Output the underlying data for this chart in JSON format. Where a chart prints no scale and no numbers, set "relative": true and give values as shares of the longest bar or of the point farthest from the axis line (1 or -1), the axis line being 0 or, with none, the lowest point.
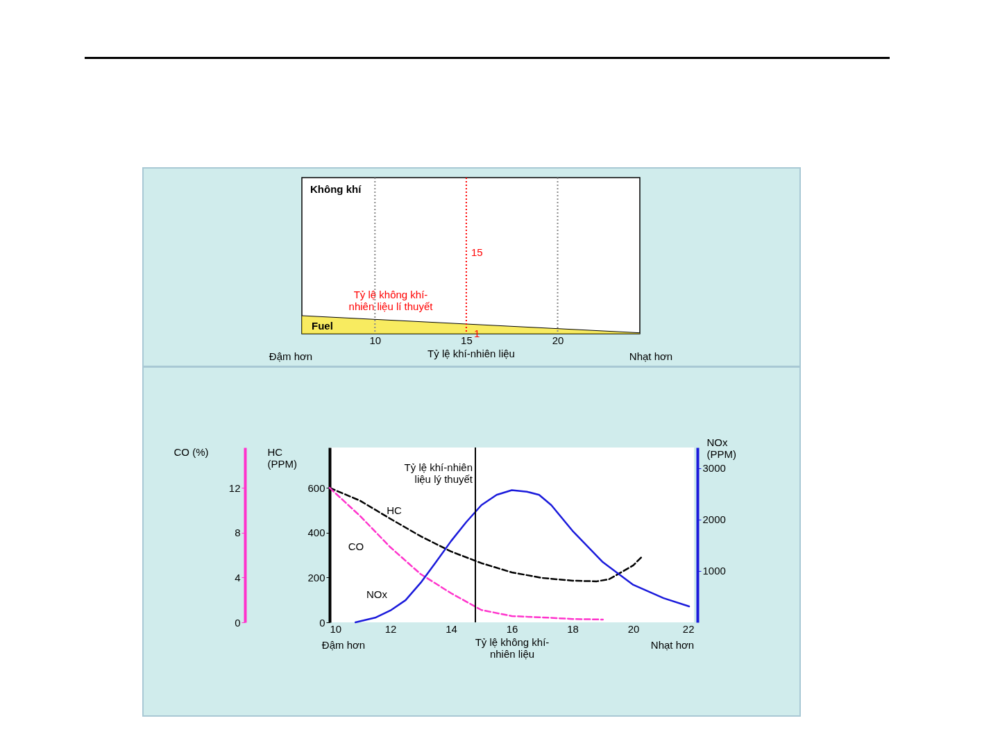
{
  "chart_data": [
    {
      "type": "area",
      "relative": true,
      "x": [
        6,
        24.5
      ],
      "values": [
        1,
        0.05
      ],
      "color": "#f5e31c",
      "xlim": [
        6,
        24.5
      ],
      "xticks": [
        10,
        15,
        20
      ],
      "xlabel": "Tỷ lệ khí-nhiên liệu",
      "grid": false,
      "ref_lines": [
        {
          "axis": "x",
          "value": 10,
          "color": "#888888",
          "line_style": "dotted"
        },
        {
          "axis": "x",
          "value": 20,
          "color": "#888888",
          "line_style": "dotted"
        },
        {
          "axis": "x",
          "value": 15,
          "color": "#ff0000",
          "line_style": "dotted",
          "label": "Tỷ lệ không khí-\nnhiên liệu lí thuyết"
        }
      ],
      "annotations": [
        "Không khí",
        "Fuel",
        "15",
        "1",
        "Đậm hơn",
        "Nhạt hơn"
      ]
    },
    {
      "type": "line",
      "xlim": [
        10,
        22
      ],
      "xticks": [
        10,
        12,
        14,
        16,
        18,
        20,
        22
      ],
      "xlabel": "Tỷ lệ không khí-\nnhiên liệu",
      "ylabel": "HC\n(PPM)",
      "ylim": [
        0,
        780
      ],
      "yticks": [
        0,
        200,
        400,
        600
      ],
      "y2label": "NOx\n(PPM)",
      "y2lim": [
        0,
        3400
      ],
      "y2ticks": [
        1000,
        2000,
        3000
      ],
      "y3label": "CO (%)",
      "y3lim": [
        0,
        15.6
      ],
      "y3ticks": [
        0,
        4,
        8,
        12
      ],
      "grid": false,
      "marker": "none",
      "series": [
        {
          "name": "HC",
          "color": "#000000",
          "line_style": "dashed",
          "axis": "y",
          "x": [
            10,
            11,
            12,
            13,
            14,
            15,
            16,
            17,
            18,
            18.8,
            19.2,
            19.6,
            20,
            20.3
          ],
          "values": [
            600,
            543,
            462,
            384,
            316,
            264,
            223,
            198,
            186,
            183,
            192,
            223,
            254,
            295
          ]
        },
        {
          "name": "CO",
          "color": "#ff33cc",
          "line_style": "dashed",
          "axis": "y3",
          "x": [
            10,
            11,
            12,
            13,
            14,
            15,
            16,
            17,
            18,
            19
          ],
          "values": [
            12,
            9.5,
            6.7,
            4.3,
            2.6,
            1.1,
            0.56,
            0.44,
            0.3,
            0.25
          ]
        },
        {
          "name": "NOx",
          "color": "#1a1adb",
          "line_style": "solid",
          "axis": "y2",
          "x": [
            10.85,
            11.5,
            12,
            12.5,
            13,
            13.5,
            14,
            14.5,
            15,
            15.5,
            16,
            16.5,
            16.9,
            17.3,
            18,
            19,
            20,
            21,
            21.84
          ],
          "values": [
            0,
            90,
            230,
            430,
            770,
            1170,
            1580,
            1950,
            2280,
            2480,
            2570,
            2540,
            2480,
            2280,
            1780,
            1170,
            730,
            470,
            310
          ]
        }
      ],
      "ref_lines": [
        {
          "axis": "x",
          "value": 14.8,
          "color": "#000000",
          "line_style": "solid",
          "label": "Tỷ lệ khí-nhiên\nliệu lý thuyết"
        }
      ],
      "annotations": [
        "Đậm hơn",
        "Nhạt hơn"
      ]
    }
  ]
}
